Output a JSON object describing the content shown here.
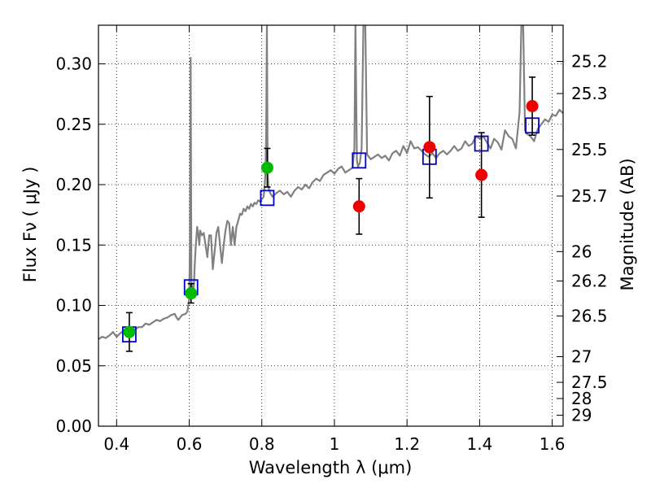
{
  "chart_data": {
    "type": "scatter",
    "title": "",
    "xlabel": "Wavelength  λ (μm)",
    "ylabel": "Flux  Fν  ( μJy )",
    "ylabel_right": "Magnitude (AB)",
    "xlim": [
      0.35,
      1.63
    ],
    "ylim": [
      0.0,
      0.332
    ],
    "grid": true,
    "colors": {
      "spectrum": "#808080",
      "model_box": "#0000cc",
      "green_point": "#00bb00",
      "red_point": "#ee0000",
      "error_bar": "#000000"
    },
    "x_ticks": [
      {
        "value": 0.4,
        "label": "0.4"
      },
      {
        "value": 0.6,
        "label": "0.6"
      },
      {
        "value": 0.8,
        "label": "0.8"
      },
      {
        "value": 1.0,
        "label": "1"
      },
      {
        "value": 1.2,
        "label": "1.2"
      },
      {
        "value": 1.4,
        "label": "1.4"
      },
      {
        "value": 1.6,
        "label": "1.6"
      }
    ],
    "y_ticks": [
      {
        "value": 0.0,
        "label": "0.00"
      },
      {
        "value": 0.05,
        "label": "0.05"
      },
      {
        "value": 0.1,
        "label": "0.10"
      },
      {
        "value": 0.15,
        "label": "0.15"
      },
      {
        "value": 0.2,
        "label": "0.20"
      },
      {
        "value": 0.25,
        "label": "0.25"
      },
      {
        "value": 0.3,
        "label": "0.30"
      }
    ],
    "mag_ticks": [
      {
        "value": 25.2,
        "label": "25.2"
      },
      {
        "value": 25.3,
        "label": "25.3"
      },
      {
        "value": 25.5,
        "label": "25.5"
      },
      {
        "value": 25.7,
        "label": "25.7"
      },
      {
        "value": 26.0,
        "label": "26"
      },
      {
        "value": 26.2,
        "label": "26.2"
      },
      {
        "value": 26.5,
        "label": "26.5"
      },
      {
        "value": 27.0,
        "label": "27"
      },
      {
        "value": 27.5,
        "label": "27.5"
      },
      {
        "value": 28.0,
        "label": "28"
      },
      {
        "value": 29.0,
        "label": "29"
      }
    ],
    "spectrum": [
      [
        0.35,
        0.072
      ],
      [
        0.36,
        0.074
      ],
      [
        0.37,
        0.073
      ],
      [
        0.38,
        0.075
      ],
      [
        0.39,
        0.078
      ],
      [
        0.4,
        0.074
      ],
      [
        0.41,
        0.077
      ],
      [
        0.42,
        0.079
      ],
      [
        0.43,
        0.078
      ],
      [
        0.44,
        0.08
      ],
      [
        0.45,
        0.08
      ],
      [
        0.46,
        0.082
      ],
      [
        0.47,
        0.082
      ],
      [
        0.48,
        0.085
      ],
      [
        0.49,
        0.084
      ],
      [
        0.5,
        0.086
      ],
      [
        0.51,
        0.088
      ],
      [
        0.52,
        0.087
      ],
      [
        0.53,
        0.089
      ],
      [
        0.54,
        0.09
      ],
      [
        0.55,
        0.092
      ],
      [
        0.56,
        0.093
      ],
      [
        0.565,
        0.09
      ],
      [
        0.57,
        0.088
      ],
      [
        0.575,
        0.09
      ],
      [
        0.58,
        0.092
      ],
      [
        0.59,
        0.093
      ],
      [
        0.595,
        0.095
      ],
      [
        0.6,
        0.105
      ],
      [
        0.602,
        0.15
      ],
      [
        0.604,
        0.305
      ],
      [
        0.606,
        0.12
      ],
      [
        0.608,
        0.115
      ],
      [
        0.612,
        0.11
      ],
      [
        0.615,
        0.132
      ],
      [
        0.618,
        0.15
      ],
      [
        0.622,
        0.165
      ],
      [
        0.625,
        0.158
      ],
      [
        0.628,
        0.15
      ],
      [
        0.63,
        0.162
      ],
      [
        0.635,
        0.158
      ],
      [
        0.64,
        0.16
      ],
      [
        0.645,
        0.15
      ],
      [
        0.65,
        0.14
      ],
      [
        0.655,
        0.158
      ],
      [
        0.66,
        0.158
      ],
      [
        0.665,
        0.13
      ],
      [
        0.67,
        0.145
      ],
      [
        0.675,
        0.16
      ],
      [
        0.68,
        0.165
      ],
      [
        0.685,
        0.15
      ],
      [
        0.69,
        0.135
      ],
      [
        0.695,
        0.15
      ],
      [
        0.7,
        0.162
      ],
      [
        0.705,
        0.17
      ],
      [
        0.71,
        0.168
      ],
      [
        0.715,
        0.15
      ],
      [
        0.72,
        0.165
      ],
      [
        0.725,
        0.15
      ],
      [
        0.73,
        0.165
      ],
      [
        0.735,
        0.17
      ],
      [
        0.74,
        0.176
      ],
      [
        0.745,
        0.175
      ],
      [
        0.75,
        0.18
      ],
      [
        0.755,
        0.178
      ],
      [
        0.76,
        0.182
      ],
      [
        0.765,
        0.18
      ],
      [
        0.77,
        0.184
      ],
      [
        0.775,
        0.182
      ],
      [
        0.78,
        0.185
      ],
      [
        0.785,
        0.184
      ],
      [
        0.79,
        0.187
      ],
      [
        0.795,
        0.186
      ],
      [
        0.8,
        0.188
      ],
      [
        0.805,
        0.19
      ],
      [
        0.808,
        0.2
      ],
      [
        0.81,
        0.21
      ],
      [
        0.812,
        0.24
      ],
      [
        0.814,
        0.333
      ],
      [
        0.816,
        0.21
      ],
      [
        0.818,
        0.2
      ],
      [
        0.82,
        0.195
      ],
      [
        0.825,
        0.192
      ],
      [
        0.83,
        0.19
      ],
      [
        0.84,
        0.193
      ],
      [
        0.85,
        0.195
      ],
      [
        0.86,
        0.192
      ],
      [
        0.87,
        0.194
      ],
      [
        0.88,
        0.19
      ],
      [
        0.89,
        0.195
      ],
      [
        0.9,
        0.198
      ],
      [
        0.91,
        0.196
      ],
      [
        0.92,
        0.2
      ],
      [
        0.93,
        0.197
      ],
      [
        0.94,
        0.202
      ],
      [
        0.95,
        0.205
      ],
      [
        0.96,
        0.203
      ],
      [
        0.97,
        0.208
      ],
      [
        0.98,
        0.21
      ],
      [
        0.99,
        0.212
      ],
      [
        1.0,
        0.209
      ],
      [
        1.01,
        0.213
      ],
      [
        1.02,
        0.215
      ],
      [
        1.03,
        0.21
      ],
      [
        1.04,
        0.212
      ],
      [
        1.05,
        0.214
      ],
      [
        1.055,
        0.23
      ],
      [
        1.058,
        0.333
      ],
      [
        1.062,
        0.22
      ],
      [
        1.065,
        0.215
      ],
      [
        1.07,
        0.218
      ],
      [
        1.075,
        0.23
      ],
      [
        1.08,
        0.333
      ],
      [
        1.085,
        0.333
      ],
      [
        1.09,
        0.225
      ],
      [
        1.1,
        0.221
      ],
      [
        1.11,
        0.223
      ],
      [
        1.12,
        0.225
      ],
      [
        1.13,
        0.222
      ],
      [
        1.14,
        0.224
      ],
      [
        1.15,
        0.22
      ],
      [
        1.16,
        0.226
      ],
      [
        1.17,
        0.228
      ],
      [
        1.18,
        0.224
      ],
      [
        1.19,
        0.232
      ],
      [
        1.2,
        0.226
      ],
      [
        1.21,
        0.236
      ],
      [
        1.22,
        0.23
      ],
      [
        1.23,
        0.231
      ],
      [
        1.24,
        0.228
      ],
      [
        1.25,
        0.225
      ],
      [
        1.26,
        0.223
      ],
      [
        1.27,
        0.226
      ],
      [
        1.28,
        0.222
      ],
      [
        1.29,
        0.226
      ],
      [
        1.3,
        0.228
      ],
      [
        1.31,
        0.225
      ],
      [
        1.32,
        0.228
      ],
      [
        1.33,
        0.232
      ],
      [
        1.34,
        0.228
      ],
      [
        1.35,
        0.23
      ],
      [
        1.36,
        0.236
      ],
      [
        1.37,
        0.232
      ],
      [
        1.38,
        0.234
      ],
      [
        1.39,
        0.24
      ],
      [
        1.4,
        0.238
      ],
      [
        1.41,
        0.24
      ],
      [
        1.42,
        0.235
      ],
      [
        1.43,
        0.23
      ],
      [
        1.44,
        0.238
      ],
      [
        1.45,
        0.235
      ],
      [
        1.46,
        0.229
      ],
      [
        1.47,
        0.245
      ],
      [
        1.48,
        0.24
      ],
      [
        1.49,
        0.238
      ],
      [
        1.5,
        0.23
      ],
      [
        1.51,
        0.26
      ],
      [
        1.515,
        0.333
      ],
      [
        1.52,
        0.333
      ],
      [
        1.525,
        0.245
      ],
      [
        1.53,
        0.242
      ],
      [
        1.54,
        0.24
      ],
      [
        1.55,
        0.236
      ],
      [
        1.56,
        0.246
      ],
      [
        1.57,
        0.25
      ],
      [
        1.58,
        0.254
      ],
      [
        1.59,
        0.252
      ],
      [
        1.6,
        0.258
      ],
      [
        1.61,
        0.257
      ],
      [
        1.62,
        0.262
      ],
      [
        1.63,
        0.259
      ]
    ],
    "model_boxes": [
      {
        "x": 0.435,
        "y": 0.076
      },
      {
        "x": 0.605,
        "y": 0.115
      },
      {
        "x": 0.815,
        "y": 0.189
      },
      {
        "x": 1.068,
        "y": 0.22
      },
      {
        "x": 1.262,
        "y": 0.223
      },
      {
        "x": 1.405,
        "y": 0.234
      },
      {
        "x": 1.545,
        "y": 0.249
      }
    ],
    "green_points": [
      {
        "x": 0.435,
        "y": 0.078,
        "err": 0.016
      },
      {
        "x": 0.605,
        "y": 0.11,
        "err": 0.008
      },
      {
        "x": 0.815,
        "y": 0.214,
        "err": 0.016
      }
    ],
    "red_points": [
      {
        "x": 1.068,
        "y": 0.182,
        "err": 0.023
      },
      {
        "x": 1.262,
        "y": 0.231,
        "err": 0.042
      },
      {
        "x": 1.405,
        "y": 0.208,
        "err": 0.035
      },
      {
        "x": 1.545,
        "y": 0.265,
        "err": 0.024
      }
    ]
  }
}
